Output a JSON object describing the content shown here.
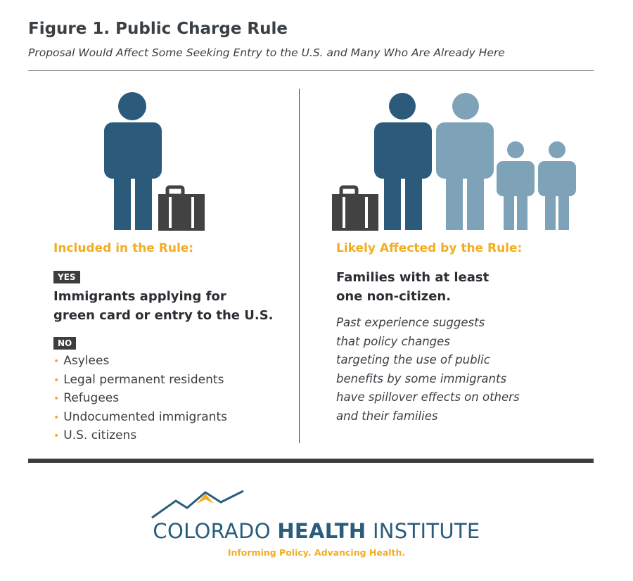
{
  "header": {
    "title": "Figure 1. Public Charge Rule",
    "subtitle": "Proposal Would Affect Some Seeking Entry to the U.S. and Many Who Are Already Here"
  },
  "left": {
    "heading": "Included in the Rule:",
    "yes_badge": "YES",
    "yes_line1": "Immigrants applying for",
    "yes_line2": "green card or entry to the U.S.",
    "no_badge": "NO",
    "no_items": [
      "Asylees",
      "Legal permanent residents",
      "Refugees",
      "Undocumented immigrants",
      "U.S. citizens"
    ],
    "bullet": "•"
  },
  "right": {
    "heading": "Likely Affected by the Rule:",
    "bold_line1": "Families with at least",
    "bold_line2": "one non-citizen.",
    "italic_lines": [
      "Past experience suggests",
      "that policy changes",
      "targeting the use of public",
      "benefits by some immigrants",
      "have spillover effects on others",
      "and their families"
    ]
  },
  "logo": {
    "word1": "COLORADO",
    "word2": "HEALTH",
    "word3": "INSTITUTE",
    "tagline": "Informing Policy. Advancing Health."
  },
  "colors": {
    "dark_blue": "#2b5a7b",
    "light_blue": "#7ea3b9",
    "suitcase": "#424242",
    "accent": "#f2ad21"
  },
  "icons": [
    "person-icon",
    "suitcase-icon",
    "mountain-logo-icon"
  ]
}
